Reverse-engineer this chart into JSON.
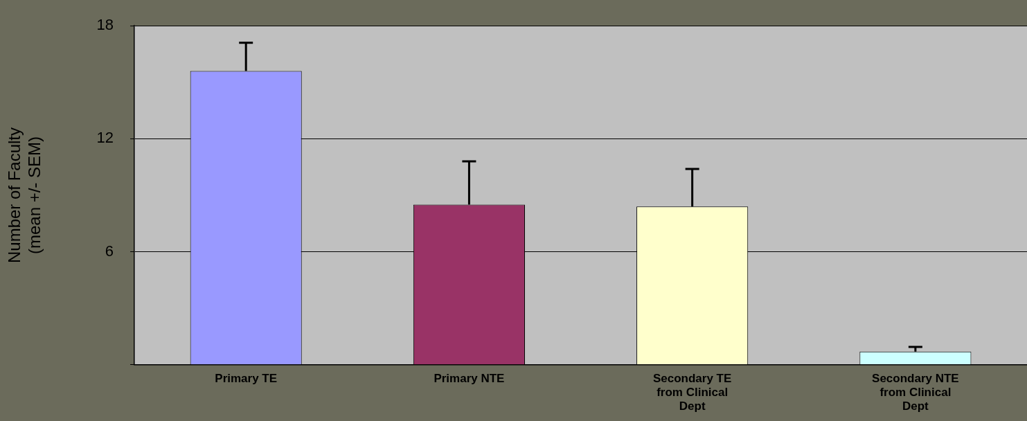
{
  "chart_data": {
    "type": "bar",
    "ylabel": "Number of Faculty (mean +/- SEM)",
    "categories": [
      "Primary TE",
      "Primary NTE",
      "Secondary TE from Clinical Dept",
      "Secondary NTE from Clinical Dept"
    ],
    "values": [
      15.6,
      8.5,
      8.4,
      0.7
    ],
    "errors": [
      1.5,
      2.3,
      2.0,
      0.25
    ],
    "colors": [
      "#9999ff",
      "#993366",
      "#ffffcc",
      "#ccffff"
    ],
    "ylim": [
      0,
      18
    ],
    "yticks": [
      {
        "value": 0,
        "label": null
      },
      6,
      12,
      18
    ],
    "grid": "y",
    "legend": false
  }
}
